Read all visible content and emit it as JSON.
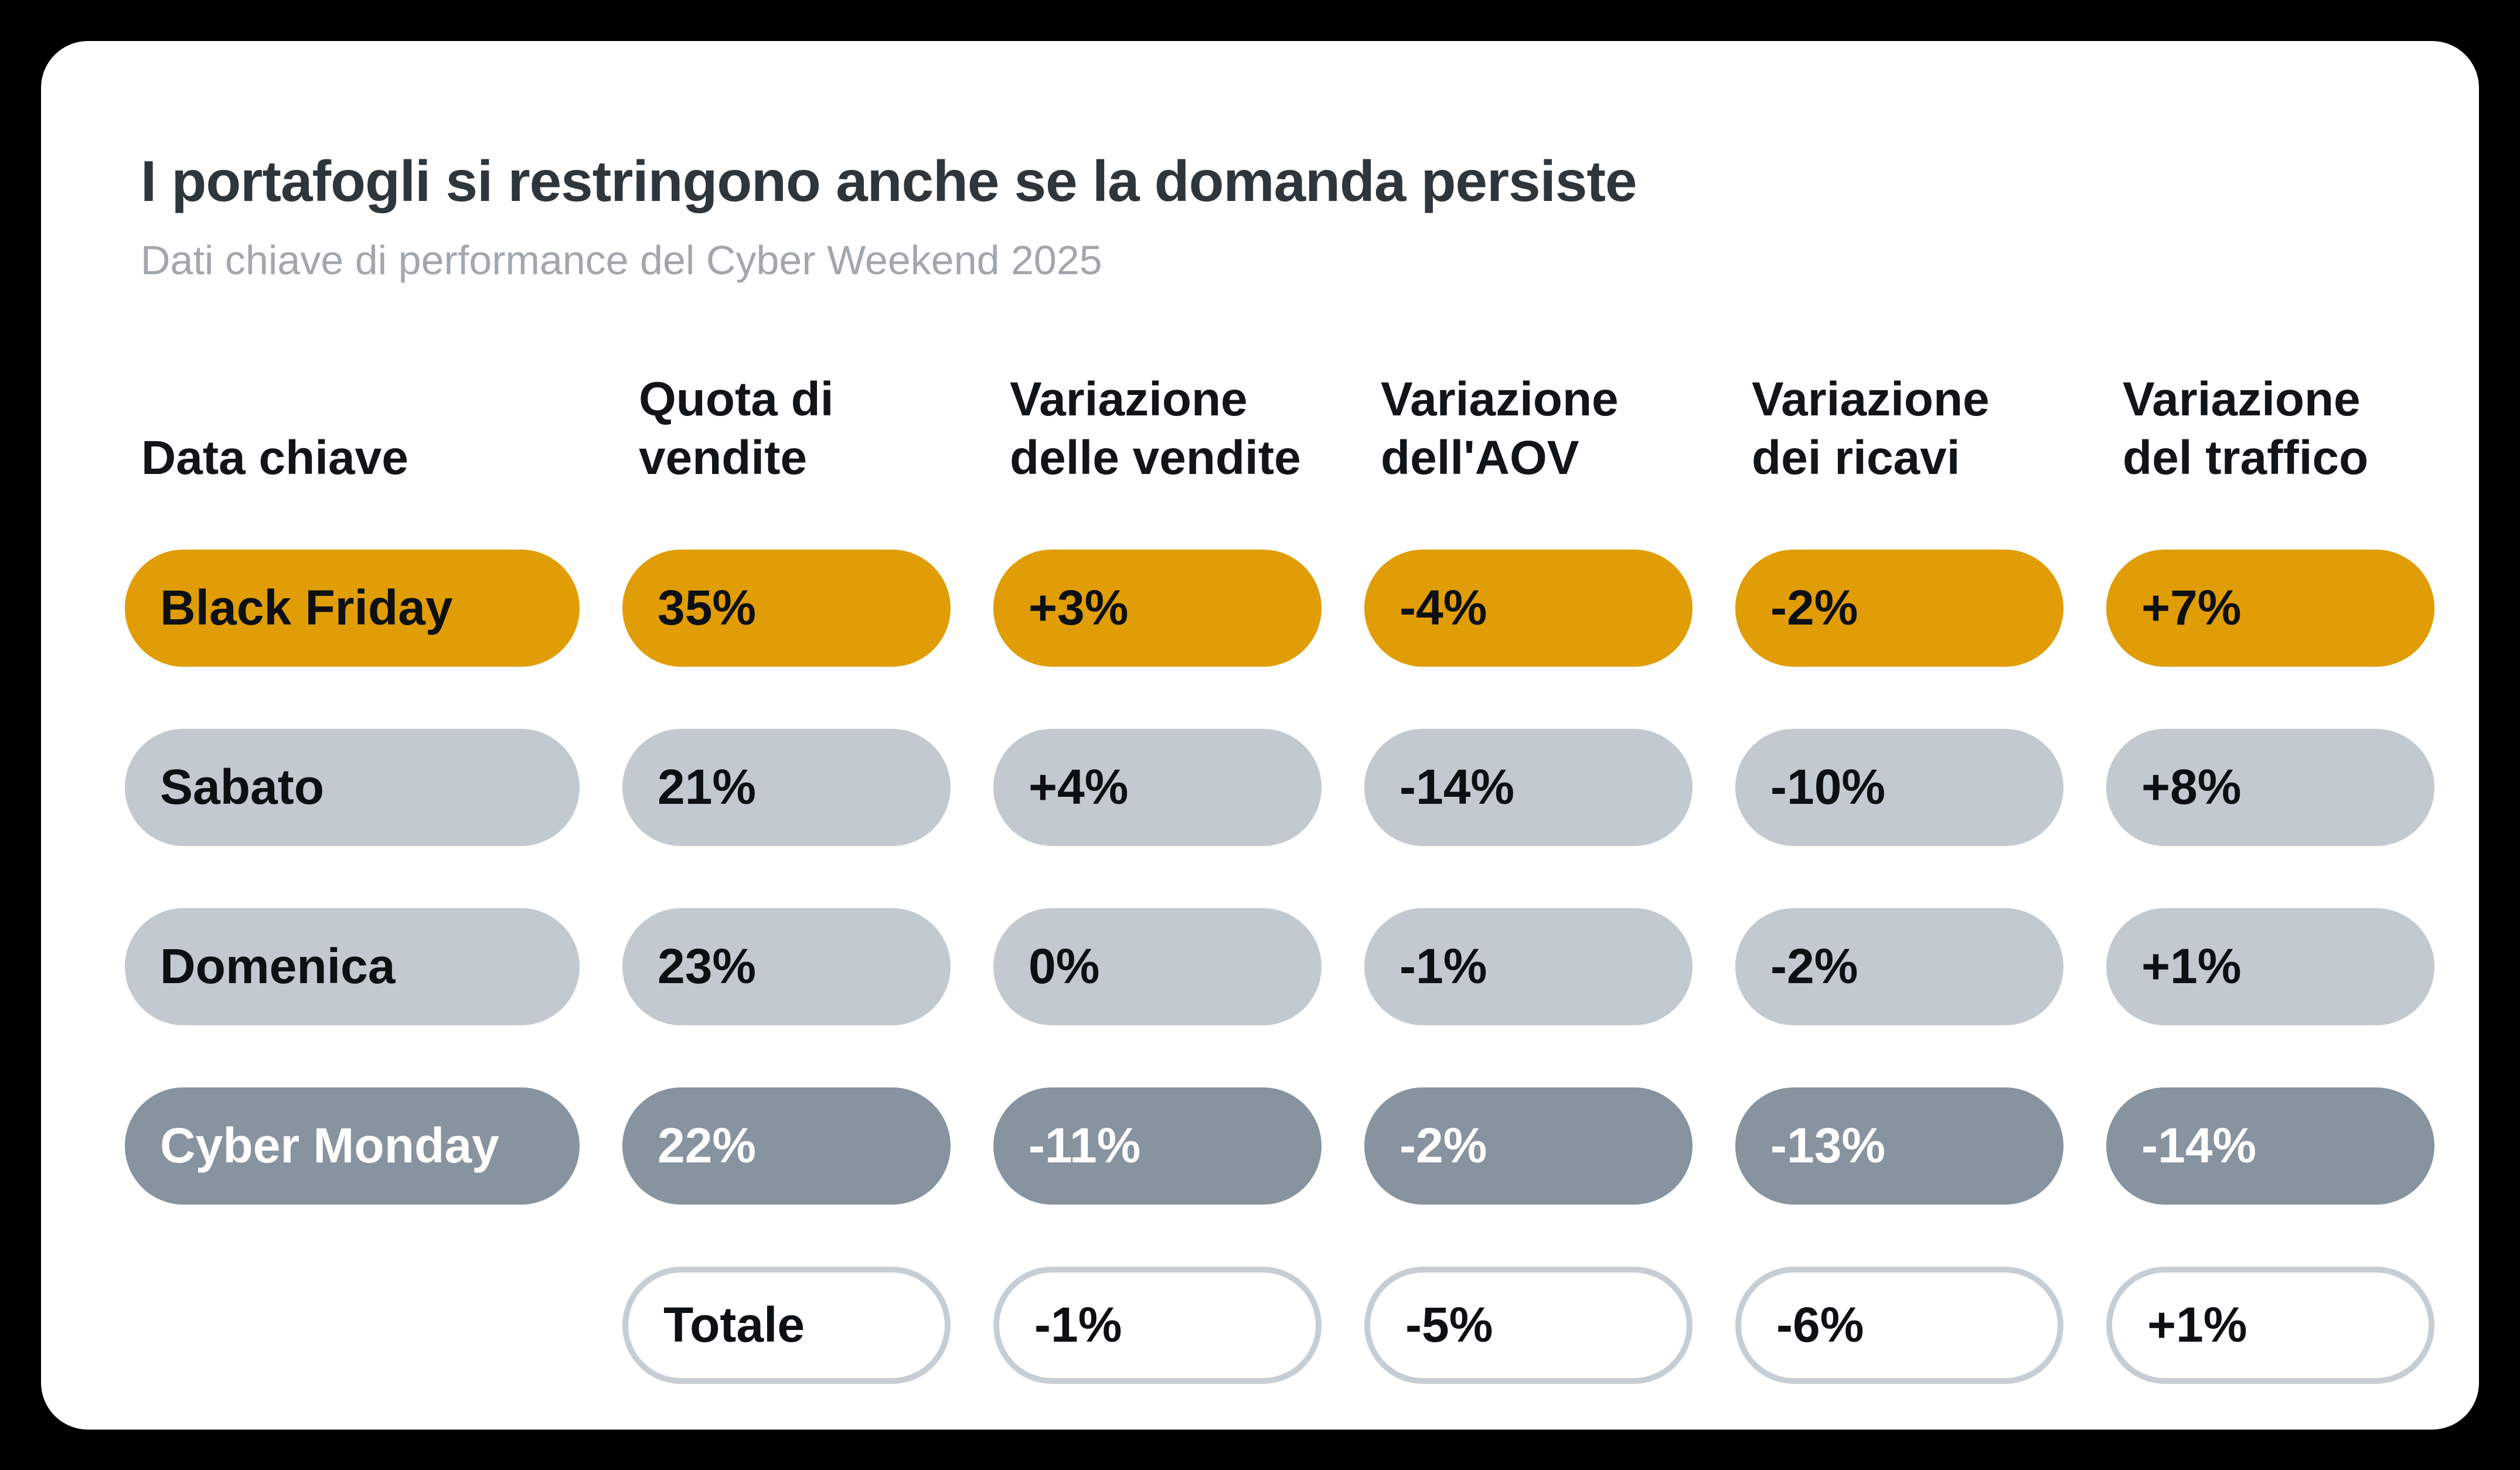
{
  "page": {
    "background": "#000000",
    "card_background": "#FFFFFF"
  },
  "header": {
    "title": "I portafogli si restringono anche se la domanda persiste",
    "subtitle": "Dati chiave di performance del Cyber Weekend 2025"
  },
  "chart_data": {
    "type": "table",
    "title": "I portafogli si restringono anche se la domanda persiste",
    "subtitle": "Dati chiave di performance del Cyber Weekend 2025",
    "columns": [
      "Data chiave",
      "Quota di\nvendite",
      "Variazione\ndelle vendite",
      "Variazione\ndell'AOV",
      "Variazione\ndei ricavi",
      "Variazione\ndel traffico"
    ],
    "rows": [
      {
        "label": "Black Friday",
        "style": "highlight",
        "offset_columns": 0,
        "values": [
          "35%",
          "+3%",
          "-4%",
          "-2%",
          "+7%"
        ]
      },
      {
        "label": "Sabato",
        "style": "light",
        "offset_columns": 0,
        "values": [
          "21%",
          "+4%",
          "-14%",
          "-10%",
          "+8%"
        ]
      },
      {
        "label": "Domenica",
        "style": "light",
        "offset_columns": 0,
        "values": [
          "23%",
          "0%",
          "-1%",
          "-2%",
          "+1%"
        ]
      },
      {
        "label": "Cyber Monday",
        "style": "dark",
        "offset_columns": 0,
        "values": [
          "22%",
          "-11%",
          "-2%",
          "-13%",
          "-14%"
        ]
      },
      {
        "label": "Totale",
        "style": "outline",
        "offset_columns": 1,
        "values": [
          "-1%",
          "-5%",
          "-6%",
          "+1%"
        ]
      }
    ],
    "legend_position": "none",
    "grid": false
  },
  "colors": {
    "highlight": "#E09D05",
    "light": "#C3C9D0",
    "dark": "#87939E",
    "dark_text": "#FFFFFF",
    "outline_border": "#C7CDD4",
    "title_text": "#2E353B",
    "subtitle_text": "#A2A7AC",
    "pill_text": "#0D1013"
  }
}
